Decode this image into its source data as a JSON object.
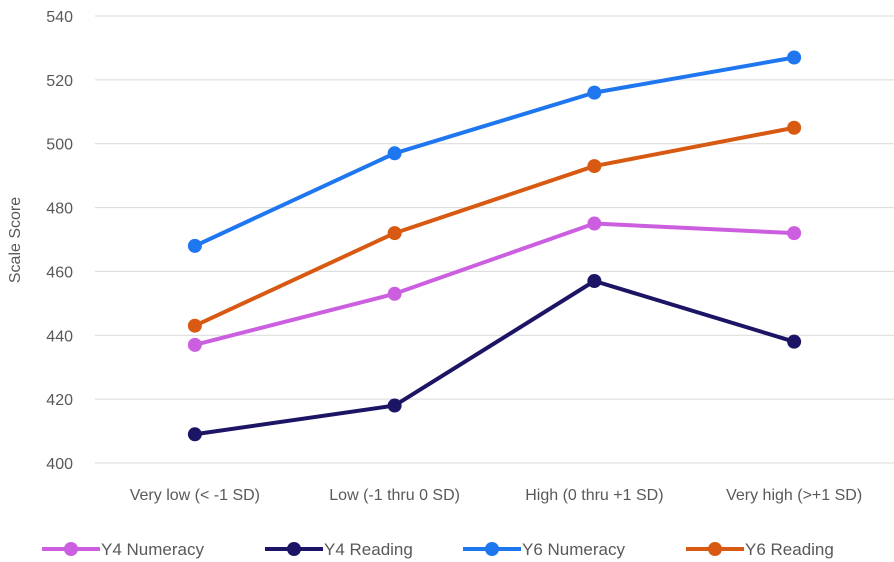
{
  "chart_data": {
    "type": "line",
    "title": "",
    "xlabel": "",
    "ylabel": "Scale Score",
    "ylim": [
      400,
      540
    ],
    "yticks": [
      400,
      420,
      440,
      460,
      480,
      500,
      520,
      540
    ],
    "grid": true,
    "legend_position": "bottom",
    "categories": [
      "Very low (< -1 SD)",
      "Low (-1 thru 0 SD)",
      "High (0 thru +1 SD)",
      "Very high (>+1 SD)"
    ],
    "series": [
      {
        "name": "Y4 Numeracy",
        "color": "#cc5fe0",
        "values": [
          437,
          453,
          475,
          472
        ]
      },
      {
        "name": "Y4 Reading",
        "color": "#1c1464",
        "values": [
          409,
          418,
          457,
          438
        ]
      },
      {
        "name": "Y6 Numeracy",
        "color": "#1f77f0",
        "values": [
          468,
          497,
          516,
          527
        ]
      },
      {
        "name": "Y6 Reading",
        "color": "#d85a12",
        "values": [
          443,
          472,
          493,
          505
        ]
      }
    ]
  }
}
